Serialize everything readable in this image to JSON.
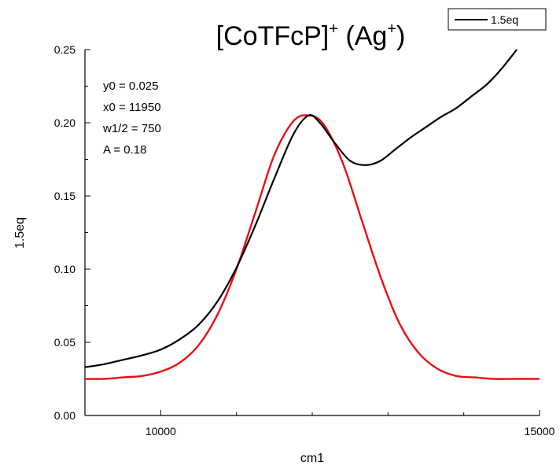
{
  "chart_data": {
    "type": "line",
    "title": {
      "main": "[CoTFcP]",
      "main_sup": "+",
      "paren_open": " (Ag",
      "paren_sup": "+",
      "paren_close": ")"
    },
    "xlabel": "cm1",
    "ylabel": "1.5eq",
    "xlim": [
      9000,
      15000
    ],
    "ylim": [
      0,
      0.25
    ],
    "x_ticks": [
      {
        "value": 10000,
        "label": "10000"
      },
      {
        "value": 15000,
        "label": "15000"
      }
    ],
    "y_ticks": [
      {
        "value": 0.0,
        "label": "0.00"
      },
      {
        "value": 0.05,
        "label": "0.05"
      },
      {
        "value": 0.1,
        "label": "0.10"
      },
      {
        "value": 0.15,
        "label": "0.15"
      },
      {
        "value": 0.2,
        "label": "0.20"
      },
      {
        "value": 0.25,
        "label": "0.25"
      }
    ],
    "annotations": [
      "y0 = 0.025",
      "x0 = 11950",
      "w1/2 = 750",
      "A = 0.18"
    ],
    "legend_position": "top-right",
    "series": [
      {
        "name": "1.5eq",
        "color": "#000000",
        "x": [
          9000,
          9250,
          9500,
          9750,
          10000,
          10250,
          10500,
          10750,
          11000,
          11250,
          11500,
          11750,
          11950,
          12100,
          12300,
          12500,
          12700,
          12900,
          13100,
          13300,
          13500,
          13700,
          13900,
          14100,
          14300,
          14500,
          14700
        ],
        "y": [
          0.033,
          0.035,
          0.038,
          0.041,
          0.045,
          0.052,
          0.062,
          0.078,
          0.101,
          0.13,
          0.162,
          0.192,
          0.205,
          0.2,
          0.186,
          0.174,
          0.171,
          0.174,
          0.182,
          0.19,
          0.197,
          0.204,
          0.21,
          0.218,
          0.226,
          0.237,
          0.25
        ]
      },
      {
        "name": "",
        "color": "#e81010",
        "x": [
          9000,
          9250,
          9500,
          9750,
          10000,
          10250,
          10500,
          10750,
          11000,
          11250,
          11500,
          11750,
          11950,
          12150,
          12400,
          12650,
          12900,
          13150,
          13400,
          13650,
          13900,
          14150,
          14400,
          14650,
          15000
        ],
        "y": [
          0.025,
          0.025,
          0.026,
          0.027,
          0.03,
          0.036,
          0.048,
          0.069,
          0.1,
          0.139,
          0.178,
          0.201,
          0.205,
          0.199,
          0.173,
          0.134,
          0.095,
          0.063,
          0.043,
          0.032,
          0.027,
          0.026,
          0.025,
          0.025,
          0.025
        ]
      }
    ]
  }
}
